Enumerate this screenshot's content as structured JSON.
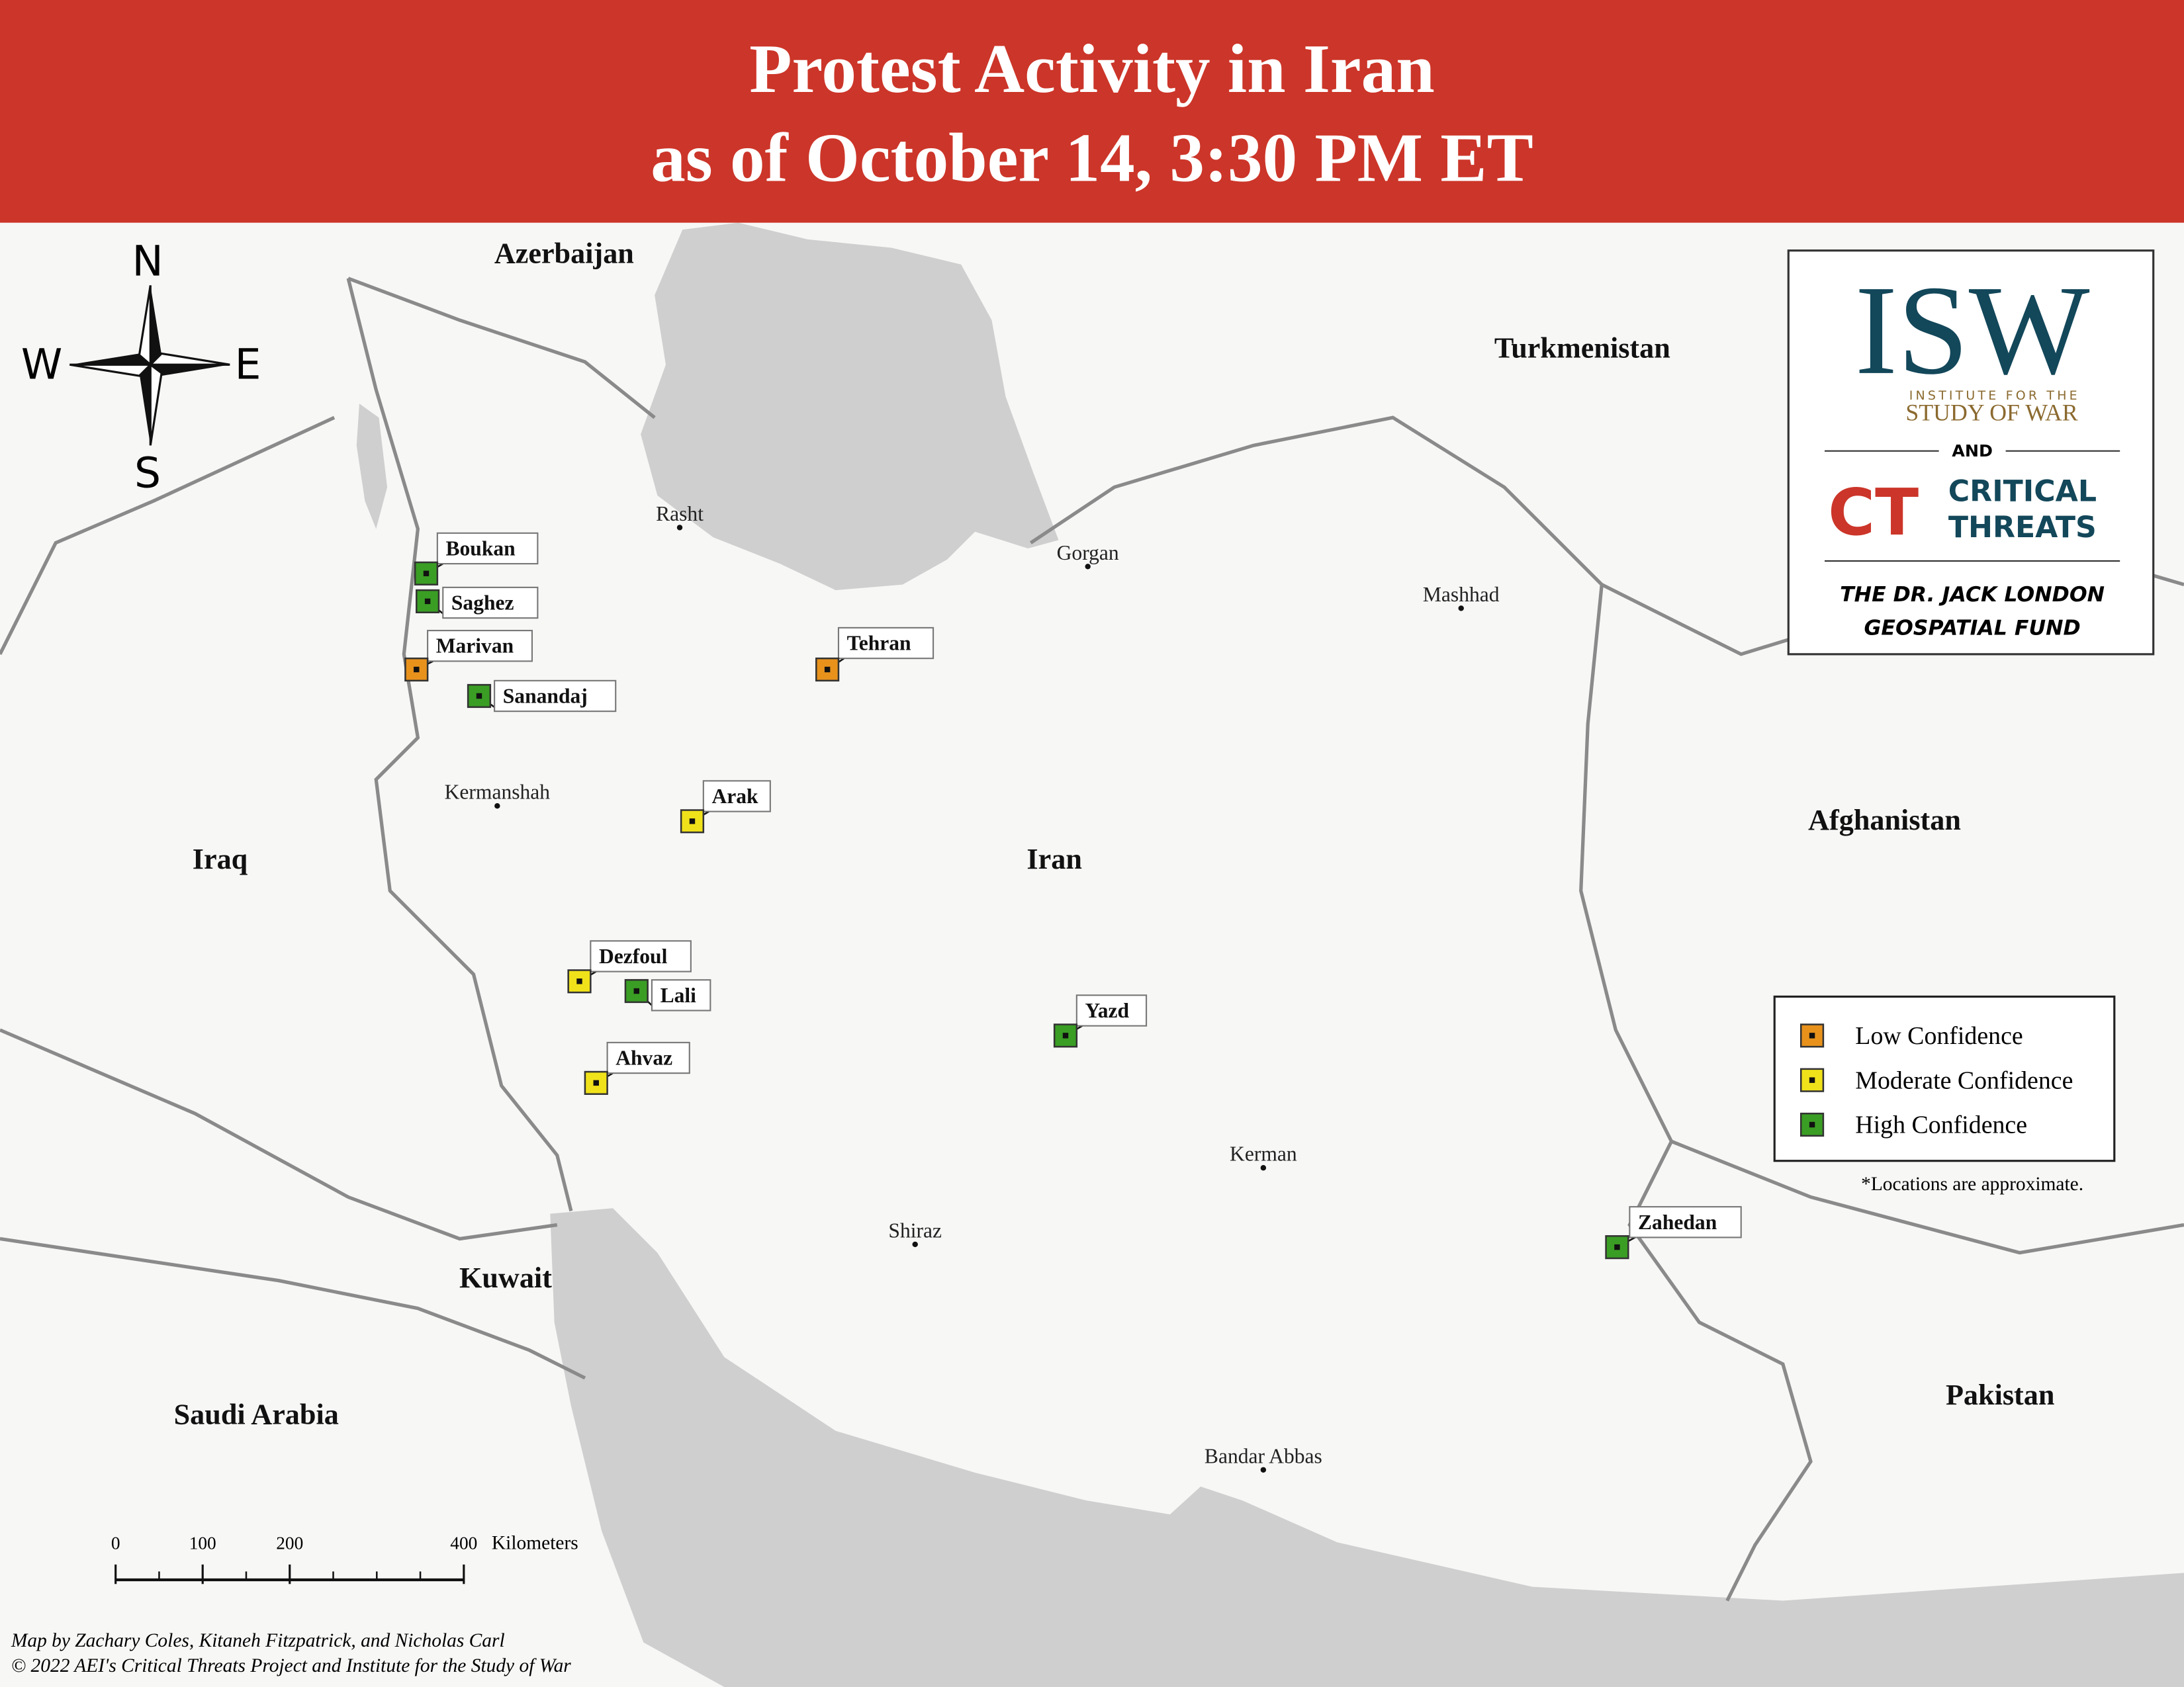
{
  "header": {
    "title_line1": "Protest Activity in Iran",
    "title_line2": "as of October 14, 3:30 PM ET"
  },
  "compass": {
    "north": "N",
    "south": "S",
    "east": "E",
    "west": "W"
  },
  "countries": [
    "Azerbaijan",
    "Turkmenistan",
    "Iraq",
    "Iran",
    "Afghanistan",
    "Kuwait",
    "Saudi Arabia",
    "Pakistan"
  ],
  "cities": [
    "Rasht",
    "Gorgan",
    "Mashhad",
    "Kermanshah",
    "Kerman",
    "Shiraz",
    "Bandar Abbas"
  ],
  "protests": [
    {
      "label": "Boukan",
      "color": "#3a9e24"
    },
    {
      "label": "Saghez",
      "color": "#3a9e24"
    },
    {
      "label": "Marivan",
      "color": "#e8921c"
    },
    {
      "label": "Sanandaj",
      "color": "#3a9e24"
    },
    {
      "label": "Tehran",
      "color": "#e8921c"
    },
    {
      "label": "Arak",
      "color": "#f0e21a"
    },
    {
      "label": "Dezfoul",
      "color": "#f0e21a"
    },
    {
      "label": "Lali",
      "color": "#3a9e24"
    },
    {
      "label": "Ahvaz",
      "color": "#f0e21a"
    },
    {
      "label": "Yazd",
      "color": "#3a9e24"
    },
    {
      "label": "Zahedan",
      "color": "#3a9e24"
    }
  ],
  "legend": {
    "items": [
      {
        "label": "Low Confidence",
        "color": "#e8921c"
      },
      {
        "label": "Moderate Confidence",
        "color": "#f0e21a"
      },
      {
        "label": "High Confidence",
        "color": "#3a9e24"
      }
    ],
    "note": "*Locations are approximate."
  },
  "scale_bar": {
    "ticks": [
      0,
      100,
      200,
      400
    ],
    "unit": "Kilometers"
  },
  "logo": {
    "isw": "ISW",
    "isw_line1": "INSTITUTE FOR THE",
    "isw_line2": "STUDY OF WAR",
    "and": "AND",
    "ct_line1": "CRITICAL",
    "ct_line2": "THREATS",
    "fund_line1": "THE DR. JACK LONDON",
    "fund_line2": "GEOSPATIAL FUND"
  },
  "credits": [
    "Map by Zachary Coles, Kitaneh Fitzpatrick, and Nicholas Carl",
    "© 2022 AEI's Critical Threats Project and Institute for the Study of War"
  ]
}
